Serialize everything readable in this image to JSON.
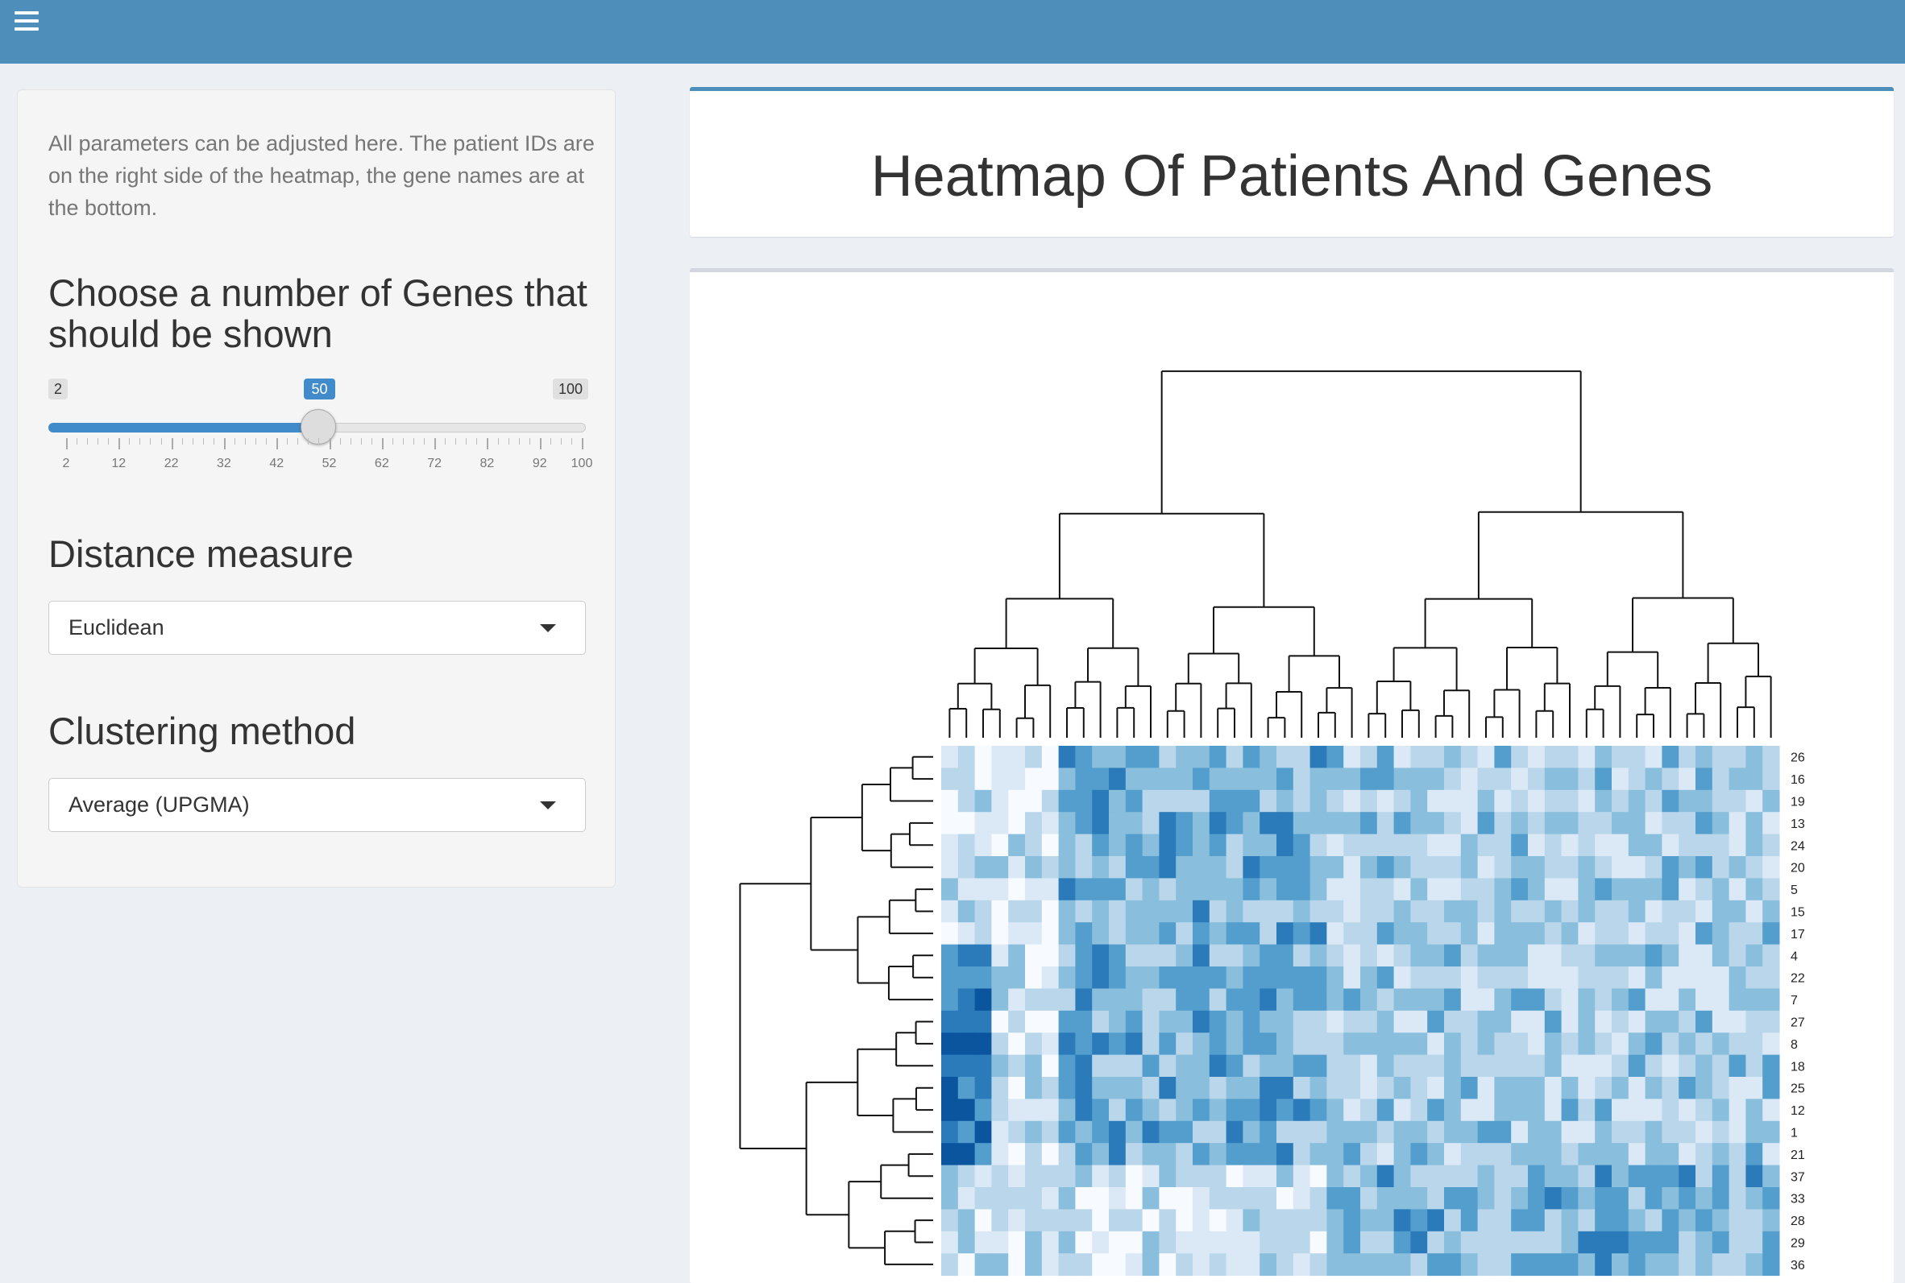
{
  "sidebar": {
    "help_text": "All parameters can be adjusted here. The patient IDs are on the right side of the heatmap, the gene names are at the bottom.",
    "genes_label": "Choose a number of Genes that should be shown",
    "slider": {
      "min": 2,
      "max": 100,
      "value": 50,
      "tick_labels": [
        "2",
        "12",
        "22",
        "32",
        "42",
        "52",
        "62",
        "72",
        "82",
        "92",
        "100"
      ]
    },
    "distance_label": "Distance measure",
    "distance_value": "Euclidean",
    "clustering_label": "Clustering method",
    "clustering_value": "Average (UPGMA)"
  },
  "main": {
    "title": "Heatmap Of Patients And Genes",
    "heatmap": {
      "row_labels": [
        "26",
        "16",
        "19",
        "13",
        "24",
        "20",
        "5",
        "15",
        "17",
        "4",
        "22",
        "7",
        "27",
        "8",
        "18",
        "25",
        "12",
        "1",
        "21",
        "37",
        "33",
        "28",
        "29",
        "36"
      ],
      "columns": 50,
      "palette": [
        "#f7fbff",
        "#dbe9f6",
        "#bad6eb",
        "#89bedc",
        "#539ecd",
        "#2b7bba",
        "#0b559f"
      ]
    }
  },
  "colors": {
    "header": "#4e8ebb",
    "accent": "#428bca"
  },
  "icons": {
    "menu": "hamburger-icon",
    "dropdown": "caret-down-icon"
  }
}
